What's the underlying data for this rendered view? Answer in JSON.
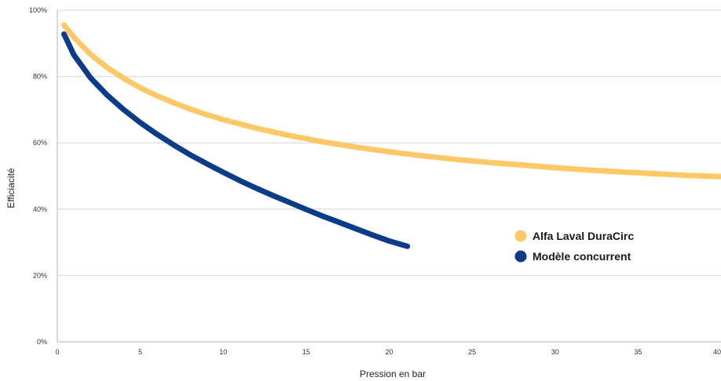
{
  "chart_data": {
    "type": "line",
    "title": "",
    "xlabel": "Pression en bar",
    "ylabel": "Efficiacité",
    "xlim": [
      0,
      40
    ],
    "ylim": [
      0,
      100
    ],
    "x_ticks": [
      0,
      5,
      10,
      15,
      20,
      25,
      30,
      35,
      40
    ],
    "y_ticks": [
      0,
      20,
      40,
      60,
      80,
      100
    ],
    "x_tick_labels": [
      "0",
      "5",
      "10",
      "15",
      "20",
      "25",
      "30",
      "35",
      "40"
    ],
    "y_tick_labels": [
      "0%",
      "20%",
      "40%",
      "60%",
      "80%",
      "100%"
    ],
    "grid": "horizontal",
    "legend_position": "right-middle",
    "series": [
      {
        "name": "Alfa Laval DuraCirc",
        "color": "#fdc968",
        "x": [
          0.4,
          1,
          2,
          3,
          4,
          5,
          6,
          7,
          8,
          9,
          10,
          12,
          14,
          16,
          18,
          20,
          22,
          24,
          26,
          28,
          30,
          32,
          34,
          36,
          38,
          40
        ],
        "y": [
          95.5,
          91.8,
          86.7,
          82.7,
          79.4,
          76.6,
          74.2,
          72.1,
          70.2,
          68.5,
          67.0,
          64.4,
          62.2,
          60.3,
          58.7,
          57.3,
          56.1,
          55.0,
          54.1,
          53.3,
          52.5,
          51.8,
          51.2,
          50.7,
          50.2,
          49.8
        ]
      },
      {
        "name": "Modèle concurrent",
        "color": "#0b3c8a",
        "x": [
          0.4,
          1,
          2,
          3,
          4,
          5,
          6,
          7,
          8,
          9,
          10,
          11,
          12,
          13,
          14,
          15,
          16,
          17,
          18,
          19,
          20,
          21.1
        ],
        "y": [
          92.8,
          86.5,
          79.6,
          74.4,
          70.0,
          66.1,
          62.6,
          59.4,
          56.4,
          53.7,
          51.1,
          48.6,
          46.3,
          44.1,
          42.0,
          39.9,
          37.9,
          36.0,
          34.1,
          32.2,
          30.4,
          28.8
        ]
      }
    ]
  }
}
